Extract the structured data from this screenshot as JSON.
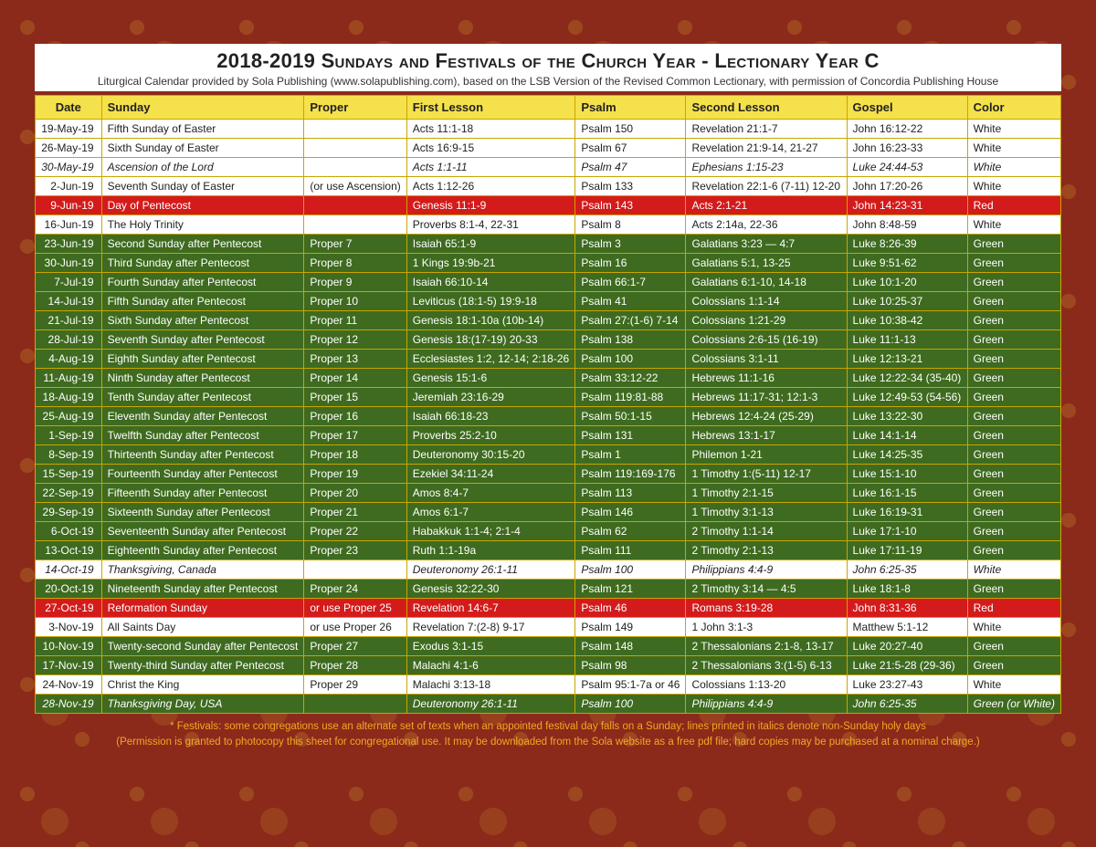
{
  "title": "2018-2019 Sundays and Festivals of the Church Year - Lectionary Year C",
  "subtitle": "Liturgical Calendar provided by Sola Publishing (www.solapublishing.com), based on the LSB Version of the Revised Common Lectionary, with permission of Concordia Publishing House",
  "columns": [
    "Date",
    "Sunday",
    "Proper",
    "First Lesson",
    "Psalm",
    "Second Lesson",
    "Gospel",
    "Color"
  ],
  "footer1": "* Festivals: some congregations use an alternate set of texts when an appointed festival day falls on a Sunday; lines printed in italics denote non-Sunday holy days",
  "footer2": "(Permission is granted to photocopy this sheet for congregational use. It may be downloaded from the Sola website as a free pdf file; hard copies may be purchased at a nominal charge.)",
  "style": {
    "page_bg": "#8b2a1a",
    "header_bg": "#f5e14b",
    "row_white_bg": "#ffffff",
    "row_red_bg": "#d41b1b",
    "row_green_bg": "#3e6b1f",
    "border_color": "#c9a500",
    "footer_color": "#f5a623",
    "title_fontsize": 22,
    "body_fontsize": 12
  },
  "rows": [
    {
      "bg": "white",
      "italic": false,
      "c": [
        "19-May-19",
        "Fifth Sunday of Easter",
        "",
        "Acts 11:1-18",
        "Psalm 150",
        "Revelation 21:1-7",
        "John 16:12-22",
        "White"
      ]
    },
    {
      "bg": "white",
      "italic": false,
      "c": [
        "26-May-19",
        "Sixth Sunday of Easter",
        "",
        "Acts 16:9-15",
        "Psalm 67",
        "Revelation 21:9-14, 21-27",
        "John 16:23-33",
        "White"
      ]
    },
    {
      "bg": "white",
      "italic": true,
      "c": [
        "30-May-19",
        "Ascension of the Lord",
        "",
        "Acts 1:1-11",
        "Psalm 47",
        "Ephesians 1:15-23",
        "Luke 24:44-53",
        "White"
      ]
    },
    {
      "bg": "white",
      "italic": false,
      "c": [
        "2-Jun-19",
        "Seventh Sunday of Easter",
        "(or use Ascension)",
        "Acts 1:12-26",
        "Psalm 133",
        "Revelation 22:1-6 (7-11) 12-20",
        "John 17:20-26",
        "White"
      ]
    },
    {
      "bg": "red",
      "italic": false,
      "c": [
        "9-Jun-19",
        "Day of Pentecost",
        "",
        "Genesis 11:1-9",
        "Psalm 143",
        "Acts 2:1-21",
        "John 14:23-31",
        "Red"
      ]
    },
    {
      "bg": "white",
      "italic": false,
      "c": [
        "16-Jun-19",
        "The Holy Trinity",
        "",
        "Proverbs 8:1-4, 22-31",
        "Psalm 8",
        "Acts 2:14a, 22-36",
        "John 8:48-59",
        "White"
      ]
    },
    {
      "bg": "green",
      "italic": false,
      "c": [
        "23-Jun-19",
        "Second Sunday after Pentecost",
        "Proper 7",
        "Isaiah 65:1-9",
        "Psalm 3",
        "Galatians 3:23 — 4:7",
        "Luke 8:26-39",
        "Green"
      ]
    },
    {
      "bg": "green",
      "italic": false,
      "c": [
        "30-Jun-19",
        "Third Sunday after Pentecost",
        "Proper 8",
        "1 Kings 19:9b-21",
        "Psalm 16",
        "Galatians 5:1, 13-25",
        "Luke 9:51-62",
        "Green"
      ]
    },
    {
      "bg": "green",
      "italic": false,
      "c": [
        "7-Jul-19",
        "Fourth Sunday after Pentecost",
        "Proper 9",
        "Isaiah 66:10-14",
        "Psalm 66:1-7",
        "Galatians 6:1-10, 14-18",
        "Luke 10:1-20",
        "Green"
      ]
    },
    {
      "bg": "green",
      "italic": false,
      "c": [
        "14-Jul-19",
        "Fifth Sunday after Pentecost",
        "Proper 10",
        "Leviticus (18:1-5) 19:9-18",
        "Psalm 41",
        "Colossians 1:1-14",
        "Luke 10:25-37",
        "Green"
      ]
    },
    {
      "bg": "green",
      "italic": false,
      "c": [
        "21-Jul-19",
        "Sixth Sunday after Pentecost",
        "Proper 11",
        "Genesis 18:1-10a (10b-14)",
        "Psalm 27:(1-6) 7-14",
        "Colossians 1:21-29",
        "Luke 10:38-42",
        "Green"
      ]
    },
    {
      "bg": "green",
      "italic": false,
      "c": [
        "28-Jul-19",
        "Seventh Sunday after Pentecost",
        "Proper 12",
        "Genesis 18:(17-19) 20-33",
        "Psalm 138",
        "Colossians 2:6-15 (16-19)",
        "Luke 11:1-13",
        "Green"
      ]
    },
    {
      "bg": "green",
      "italic": false,
      "c": [
        "4-Aug-19",
        "Eighth Sunday after Pentecost",
        "Proper 13",
        "Ecclesiastes 1:2, 12-14; 2:18-26",
        "Psalm 100",
        "Colossians 3:1-11",
        "Luke 12:13-21",
        "Green"
      ]
    },
    {
      "bg": "green",
      "italic": false,
      "c": [
        "11-Aug-19",
        "Ninth Sunday after Pentecost",
        "Proper 14",
        "Genesis 15:1-6",
        "Psalm 33:12-22",
        "Hebrews 11:1-16",
        "Luke 12:22-34 (35-40)",
        "Green"
      ]
    },
    {
      "bg": "green",
      "italic": false,
      "c": [
        "18-Aug-19",
        "Tenth Sunday after Pentecost",
        "Proper 15",
        "Jeremiah 23:16-29",
        "Psalm 119:81-88",
        "Hebrews 11:17-31; 12:1-3",
        "Luke 12:49-53 (54-56)",
        "Green"
      ]
    },
    {
      "bg": "green",
      "italic": false,
      "c": [
        "25-Aug-19",
        "Eleventh Sunday after Pentecost",
        "Proper 16",
        "Isaiah 66:18-23",
        "Psalm 50:1-15",
        "Hebrews 12:4-24 (25-29)",
        "Luke 13:22-30",
        "Green"
      ]
    },
    {
      "bg": "green",
      "italic": false,
      "c": [
        "1-Sep-19",
        "Twelfth Sunday after Pentecost",
        "Proper 17",
        "Proverbs 25:2-10",
        "Psalm 131",
        "Hebrews 13:1-17",
        "Luke 14:1-14",
        "Green"
      ]
    },
    {
      "bg": "green",
      "italic": false,
      "c": [
        "8-Sep-19",
        "Thirteenth Sunday after Pentecost",
        "Proper 18",
        "Deuteronomy 30:15-20",
        "Psalm 1",
        "Philemon 1-21",
        "Luke 14:25-35",
        "Green"
      ]
    },
    {
      "bg": "green",
      "italic": false,
      "c": [
        "15-Sep-19",
        "Fourteenth Sunday after Pentecost",
        "Proper 19",
        "Ezekiel 34:11-24",
        "Psalm 119:169-176",
        "1 Timothy 1:(5-11) 12-17",
        "Luke 15:1-10",
        "Green"
      ]
    },
    {
      "bg": "green",
      "italic": false,
      "c": [
        "22-Sep-19",
        "Fifteenth Sunday after Pentecost",
        "Proper 20",
        "Amos 8:4-7",
        "Psalm 113",
        "1 Timothy 2:1-15",
        "Luke 16:1-15",
        "Green"
      ]
    },
    {
      "bg": "green",
      "italic": false,
      "c": [
        "29-Sep-19",
        "Sixteenth Sunday after Pentecost",
        "Proper 21",
        "Amos 6:1-7",
        "Psalm 146",
        "1 Timothy 3:1-13",
        "Luke 16:19-31",
        "Green"
      ]
    },
    {
      "bg": "green",
      "italic": false,
      "c": [
        "6-Oct-19",
        "Seventeenth Sunday after Pentecost",
        "Proper 22",
        "Habakkuk 1:1-4; 2:1-4",
        "Psalm 62",
        "2 Timothy 1:1-14",
        "Luke 17:1-10",
        "Green"
      ]
    },
    {
      "bg": "green",
      "italic": false,
      "c": [
        "13-Oct-19",
        "Eighteenth Sunday after Pentecost",
        "Proper 23",
        "Ruth 1:1-19a",
        "Psalm 111",
        "2 Timothy 2:1-13",
        "Luke 17:11-19",
        "Green"
      ]
    },
    {
      "bg": "white",
      "italic": true,
      "c": [
        "14-Oct-19",
        "Thanksgiving, Canada",
        "",
        "Deuteronomy 26:1-11",
        "Psalm 100",
        "Philippians 4:4-9",
        "John 6:25-35",
        "White"
      ]
    },
    {
      "bg": "green",
      "italic": false,
      "c": [
        "20-Oct-19",
        "Nineteenth Sunday after Pentecost",
        "Proper 24",
        "Genesis 32:22-30",
        "Psalm 121",
        "2 Timothy 3:14 — 4:5",
        "Luke 18:1-8",
        "Green"
      ]
    },
    {
      "bg": "red",
      "italic": false,
      "c": [
        "27-Oct-19",
        "Reformation Sunday",
        "or use Proper 25",
        "Revelation 14:6-7",
        "Psalm 46",
        "Romans 3:19-28",
        "John 8:31-36",
        "Red"
      ]
    },
    {
      "bg": "white",
      "italic": false,
      "c": [
        "3-Nov-19",
        "All Saints Day",
        "or use Proper 26",
        "Revelation 7:(2-8) 9-17",
        "Psalm 149",
        "1 John 3:1-3",
        "Matthew 5:1-12",
        "White"
      ]
    },
    {
      "bg": "green",
      "italic": false,
      "c": [
        "10-Nov-19",
        "Twenty-second Sunday after Pentecost",
        "Proper 27",
        "Exodus 3:1-15",
        "Psalm 148",
        "2 Thessalonians 2:1-8, 13-17",
        "Luke 20:27-40",
        "Green"
      ]
    },
    {
      "bg": "green",
      "italic": false,
      "c": [
        "17-Nov-19",
        "Twenty-third Sunday after Pentecost",
        "Proper 28",
        "Malachi 4:1-6",
        "Psalm 98",
        "2 Thessalonians 3:(1-5) 6-13",
        "Luke 21:5-28 (29-36)",
        "Green"
      ]
    },
    {
      "bg": "white",
      "italic": false,
      "c": [
        "24-Nov-19",
        "Christ the King",
        "Proper 29",
        "Malachi 3:13-18",
        "Psalm 95:1-7a or 46",
        "Colossians 1:13-20",
        "Luke 23:27-43",
        "White"
      ]
    },
    {
      "bg": "green",
      "italic": true,
      "c": [
        "28-Nov-19",
        "Thanksgiving Day, USA",
        "",
        "Deuteronomy 26:1-11",
        "Psalm 100",
        "Philippians 4:4-9",
        "John 6:25-35",
        "Green (or White)"
      ]
    }
  ]
}
